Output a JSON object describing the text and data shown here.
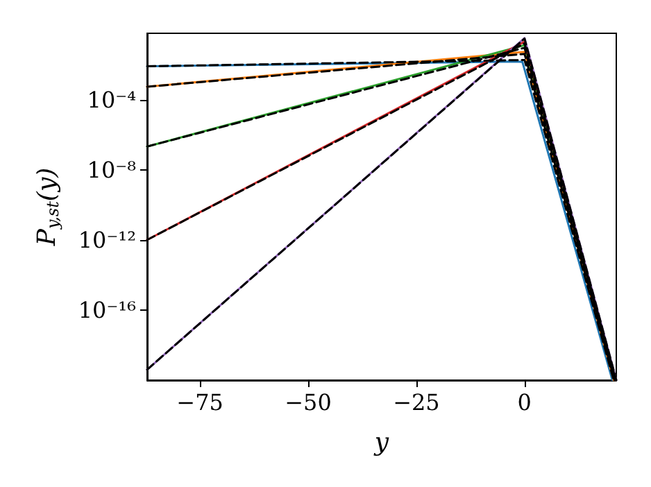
{
  "chart_data": {
    "type": "line",
    "xlabel": "y",
    "ylabel": "P$_{y,st}$(y)",
    "log": "y",
    "grid": false,
    "marker": "none",
    "line_style": "solid",
    "xlim": [
      -87.2,
      21.2
    ],
    "xticks": [
      {
        "value": -75,
        "label": "−75"
      },
      {
        "value": -50,
        "label": "−50"
      },
      {
        "value": -25,
        "label": "−25"
      },
      0
    ],
    "ylim": [
      1e-20,
      0.6
    ],
    "yticks": [
      {
        "value": 0.0001,
        "label": "10⁻⁴"
      },
      {
        "value": 1e-08,
        "label": "10⁻⁸"
      },
      {
        "value": 1e-12,
        "label": "10⁻¹²"
      },
      {
        "value": 1e-16,
        "label": "10⁻¹⁶"
      }
    ],
    "series": [
      {
        "color": "#1f77b4",
        "x": [
          -87.2,
          -2,
          -0.5,
          20.3
        ],
        "values": [
          0.0079,
          0.0148,
          0.0141,
          1e-20
        ]
      },
      {
        "color": "#ff7f0e",
        "x": [
          -87.2,
          0,
          20.6
        ],
        "values": [
          0.00054,
          0.052,
          1e-20
        ]
      },
      {
        "color": "#2ca02c",
        "x": [
          -87.2,
          0,
          21
        ],
        "values": [
          2.1e-07,
          0.126,
          1e-20
        ]
      },
      {
        "color": "#d62728",
        "x": [
          -87.2,
          0,
          21
        ],
        "values": [
          1e-12,
          0.2,
          1e-20
        ]
      },
      {
        "color": "#9467bd",
        "x": [
          -87.2,
          0,
          21.2
        ],
        "values": [
          4e-20,
          0.32,
          1e-20
        ]
      },
      {
        "color": "#000000",
        "line_style": "dashed",
        "x": [
          -87.2,
          0,
          20.6
        ],
        "values": [
          0.0079,
          0.018,
          1e-20
        ]
      },
      {
        "color": "#000000",
        "line_style": "dashed",
        "x": [
          -87.2,
          0,
          20.8
        ],
        "values": [
          0.00054,
          0.04,
          1e-20
        ]
      },
      {
        "color": "#000000",
        "line_style": "dashed",
        "x": [
          -87.2,
          0,
          21
        ],
        "values": [
          2.1e-07,
          0.09,
          1e-20
        ]
      },
      {
        "color": "#000000",
        "line_style": "dashed",
        "x": [
          -87.2,
          0,
          21.1
        ],
        "values": [
          1e-12,
          0.16,
          1e-20
        ]
      },
      {
        "color": "#000000",
        "line_style": "dashed",
        "x": [
          -87.2,
          0,
          21.2
        ],
        "values": [
          4e-20,
          0.3,
          1e-20
        ]
      }
    ]
  }
}
